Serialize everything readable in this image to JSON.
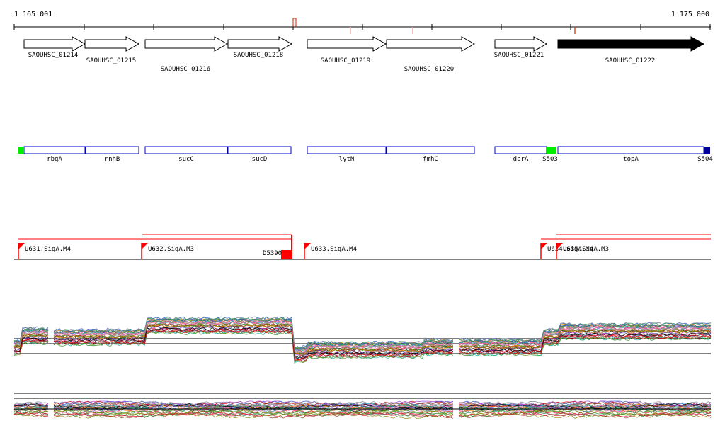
{
  "ruler": {
    "start_label": "1 165 001",
    "end_label": "1 175 000",
    "start_bp": 1165001,
    "end_bp": 1175000
  },
  "colors": {
    "axis": "#000000",
    "gene_outline": "#000000",
    "gene_fill_open": "#ffffff",
    "gene_fill_selected": "#000000",
    "operon_outline": "#0000cc",
    "marker_green": "#00ee00",
    "marker_navy": "#000099",
    "promoter": "#ff0000",
    "terminator": "#ff0000"
  },
  "genes": [
    {
      "label": "SAOUHSC_01214",
      "filled": false
    },
    {
      "label": "SAOUHSC_01215",
      "filled": false
    },
    {
      "label": "SAOUHSC_01216",
      "filled": false
    },
    {
      "label": "SAOUHSC_01218",
      "filled": false
    },
    {
      "label": "SAOUHSC_01219",
      "filled": false
    },
    {
      "label": "SAOUHSC_01220",
      "filled": false
    },
    {
      "label": "SAOUHSC_01221",
      "filled": false
    },
    {
      "label": "SAOUHSC_01222",
      "filled": true
    }
  ],
  "gene_names": [
    "rbgA",
    "rnhB",
    "sucC",
    "sucD",
    "lytN",
    "fmhC",
    "dprA",
    "topA"
  ],
  "markers": [
    "S503",
    "S504"
  ],
  "promoters": [
    "U631.SigA.M4",
    "U632.SigA.M3",
    "U633.SigA.M4",
    "U634.SigA.M4",
    "U635.SigA.M3"
  ],
  "terminator_label": "D5390",
  "expression": {
    "track_count": 2,
    "line_colors": [
      "#000000",
      "#cc0000",
      "#228b22",
      "#1f4fbf",
      "#9932cc",
      "#ff8c00",
      "#8b4513",
      "#20b2aa",
      "#808000",
      "#dc143c",
      "#4682b4",
      "#bc8f8f",
      "#6b8e23",
      "#ff69b4",
      "#2e8b57",
      "#708090"
    ]
  }
}
